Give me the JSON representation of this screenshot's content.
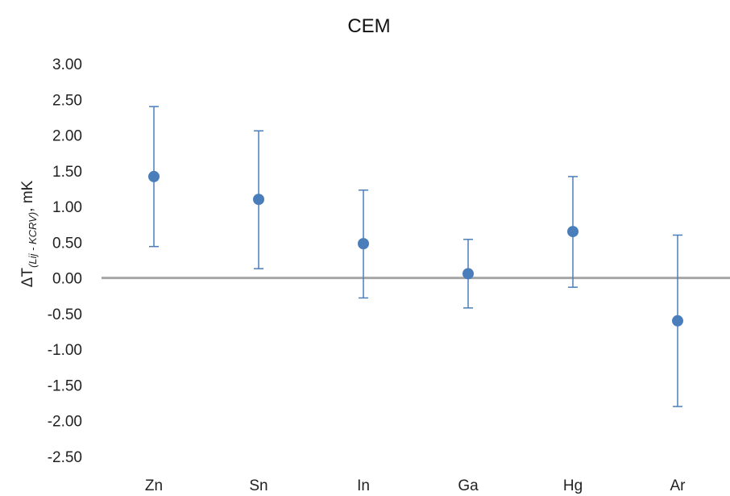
{
  "chart_data": {
    "type": "scatter",
    "title": "CEM",
    "ylabel": {
      "prefix": "ΔT",
      "subscript": "(Lij - KCRV)",
      "suffix": ",  mK"
    },
    "xlabel": "",
    "categories": [
      "Zn",
      "Sn",
      "In",
      "Ga",
      "Hg",
      "Ar"
    ],
    "values": [
      1.42,
      1.1,
      0.48,
      0.06,
      0.65,
      -0.6
    ],
    "error_lower": [
      0.44,
      0.13,
      -0.28,
      -0.42,
      -0.13,
      -1.8
    ],
    "error_upper": [
      2.4,
      2.06,
      1.23,
      0.54,
      1.42,
      0.6
    ],
    "ylim": [
      -2.5,
      3.0
    ],
    "yticks": [
      "3.00",
      "2.50",
      "2.00",
      "1.50",
      "1.00",
      "0.50",
      "0.00",
      "-0.50",
      "-1.00",
      "-1.50",
      "-2.00",
      "-2.50"
    ],
    "ytick_values": [
      3.0,
      2.5,
      2.0,
      1.5,
      1.0,
      0.5,
      0.0,
      -0.5,
      -1.0,
      -1.5,
      -2.0,
      -2.5
    ],
    "grid": false,
    "zero_line": true,
    "colors": {
      "marker": "#4a7ebb",
      "errorbar": "#4a7ebb",
      "zero_line": "#a6a6a6"
    }
  }
}
